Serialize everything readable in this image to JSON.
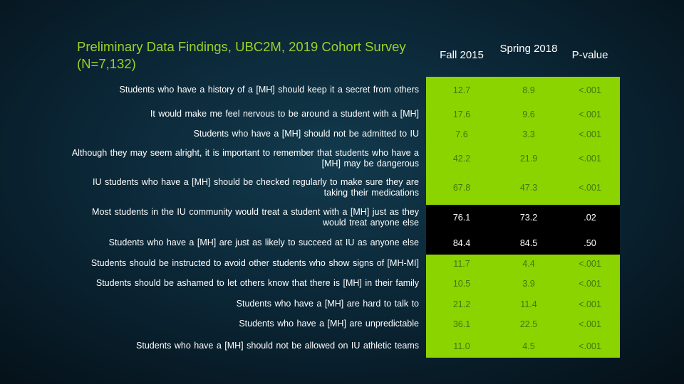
{
  "slide": {
    "title": "Preliminary Data Findings, UBC2M, 2019 Cohort Survey (N=7,132)",
    "columns": {
      "fall": "Fall 2015",
      "spring": "Spring 2018",
      "pvalue": "P-value"
    },
    "colors": {
      "title": "#9bd12a",
      "highlight_fill": "#8cd400",
      "highlight_text": "#3a7a10",
      "non_significant_fill": "#000000"
    },
    "rows": [
      {
        "question": "Students who have  a history of a [MH] should keep it a secret from others",
        "fall": "12.7",
        "spring": "8.9",
        "p": "<.001"
      },
      {
        "question": "It would make me feel nervous to be around  a student with a [MH]",
        "fall": "17.6",
        "spring": "9.6",
        "p": "<.001"
      },
      {
        "question": "Students who have  a [MH] should not be admitted to IU",
        "fall": "7.6",
        "spring": "3.3",
        "p": "<.001"
      },
      {
        "question": "Although they may seem alright, it is important to remember  that students who have  a [MH] may be dangerous",
        "fall": "42.2",
        "spring": "21.9",
        "p": "<.001"
      },
      {
        "question": "IU students who have  a [MH] should be checked regularly to make sure they are taking their medications",
        "fall": "67.8",
        "spring": "47.3",
        "p": "<.001"
      },
      {
        "question": "Most students in the IU community would treat a student with a [MH] just as they would treat anyone else",
        "fall": "76.1",
        "spring": "73.2",
        "p": ".02"
      },
      {
        "question": "Students who have  a [MH] are just as likely to succeed at IU as anyone else",
        "fall": "84.4",
        "spring": "84.5",
        "p": ".50"
      },
      {
        "question": "Students should be instructed to avoid  other students who show signs of [MH-MI]",
        "fall": "11.7",
        "spring": "4.4",
        "p": "<.001"
      },
      {
        "question": "Students should be ashamed to let others know that there is [MH] in their family",
        "fall": "10.5",
        "spring": "3.9",
        "p": "<.001"
      },
      {
        "question": "Students who have  a [MH] are hard to talk to",
        "fall": "21.2",
        "spring": "11.4",
        "p": "<.001"
      },
      {
        "question": "Students who have  a [MH] are unpredictable",
        "fall": "36.1",
        "spring": "22.5",
        "p": "<.001"
      },
      {
        "question": "Students who have  a [MH] should not be allowed on IU athletic teams",
        "fall": "11.0",
        "spring": "4.5",
        "p": "<.001"
      }
    ]
  }
}
